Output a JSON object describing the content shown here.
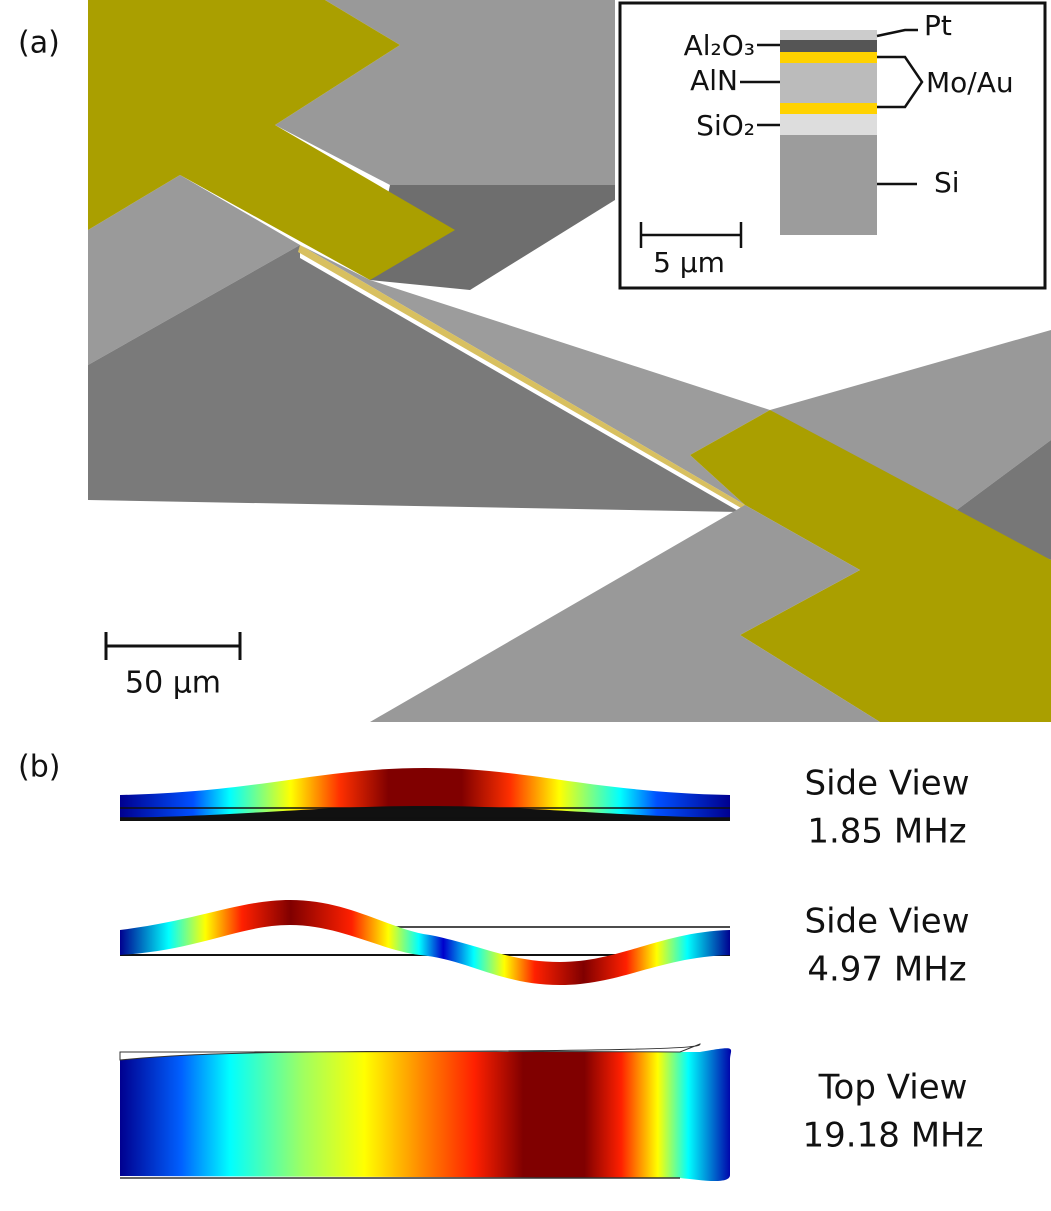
{
  "panel_a": {
    "label": "(a)",
    "scale_bar": "50 µm",
    "inset": {
      "layers": {
        "pt": "Pt",
        "al2o3": "Al₂O₃",
        "aln": "AlN",
        "mo_au": "Mo/Au",
        "sio2": "SiO₂",
        "si": "Si"
      },
      "scale_bar": "5 µm"
    }
  },
  "panel_b": {
    "label": "(b)",
    "modes": [
      {
        "view": "Side View",
        "frequency": "1.85 MHz"
      },
      {
        "view": "Side View",
        "frequency": "4.97 MHz"
      },
      {
        "view": "Top View",
        "frequency": "19.18 MHz"
      }
    ]
  }
}
